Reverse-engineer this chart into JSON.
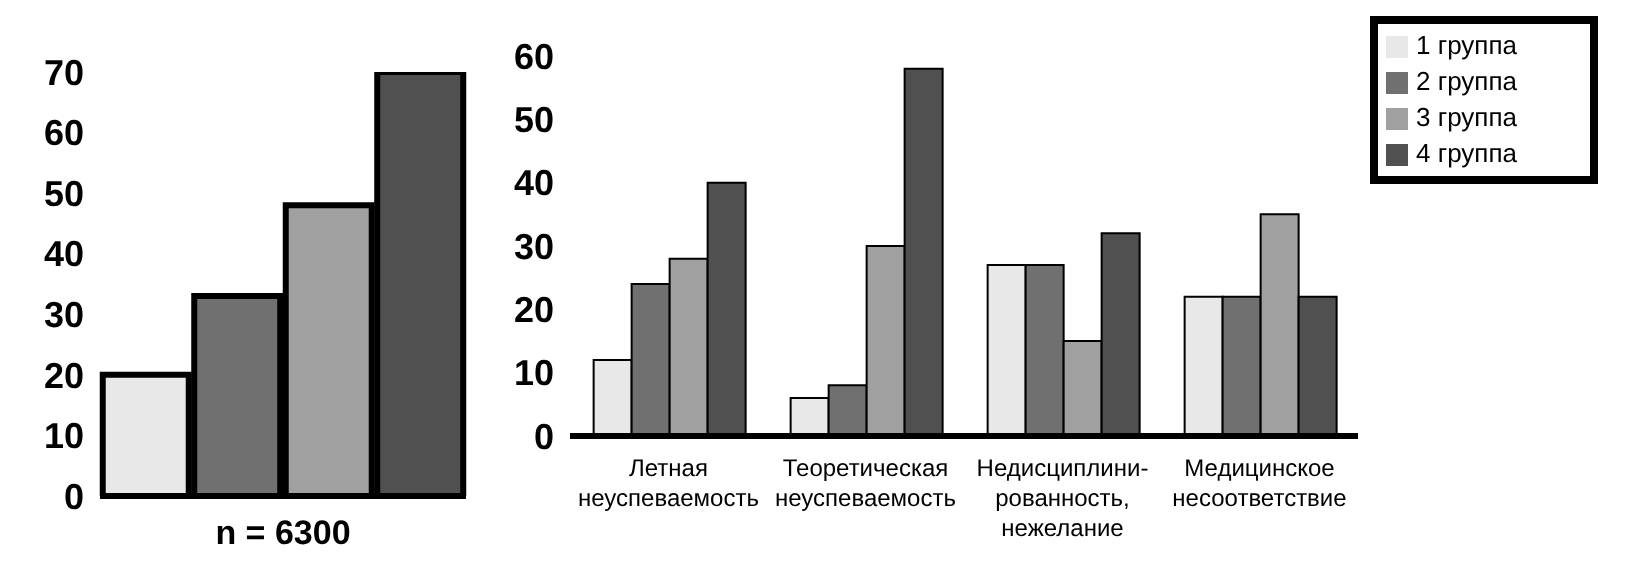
{
  "chart_data": [
    {
      "type": "bar",
      "xlabel": "n = 6300",
      "categories": [
        null,
        null,
        null,
        null
      ],
      "values": [
        20,
        33,
        48,
        70
      ],
      "colors": [
        "#e8e8e8",
        "#707070",
        "#a0a0a0",
        "#505050"
      ],
      "ylim": [
        0,
        70
      ],
      "yticks": [
        0,
        10,
        20,
        30,
        40,
        50,
        60,
        70
      ],
      "grid": false,
      "legend": false
    },
    {
      "type": "bar",
      "categories": [
        "Летная\nнеуспеваемость",
        "Теоретическая\nнеуспеваемость",
        "Недисциплини-\nрованность,\nнежелание",
        "Медицинское\nнесоответствие"
      ],
      "series": [
        {
          "name": "1 группа",
          "color": "#e8e8e8",
          "values": [
            12,
            6,
            27,
            22
          ]
        },
        {
          "name": "2 группа",
          "color": "#707070",
          "values": [
            24,
            8,
            27,
            22
          ]
        },
        {
          "name": "3 группа",
          "color": "#a0a0a0",
          "values": [
            28,
            30,
            15,
            35
          ]
        },
        {
          "name": "4 группа",
          "color": "#505050",
          "values": [
            40,
            58,
            32,
            22
          ]
        }
      ],
      "ylim": [
        0,
        60
      ],
      "yticks": [
        0,
        10,
        20,
        30,
        40,
        50,
        60
      ],
      "grid": false,
      "legend": "top right"
    }
  ]
}
